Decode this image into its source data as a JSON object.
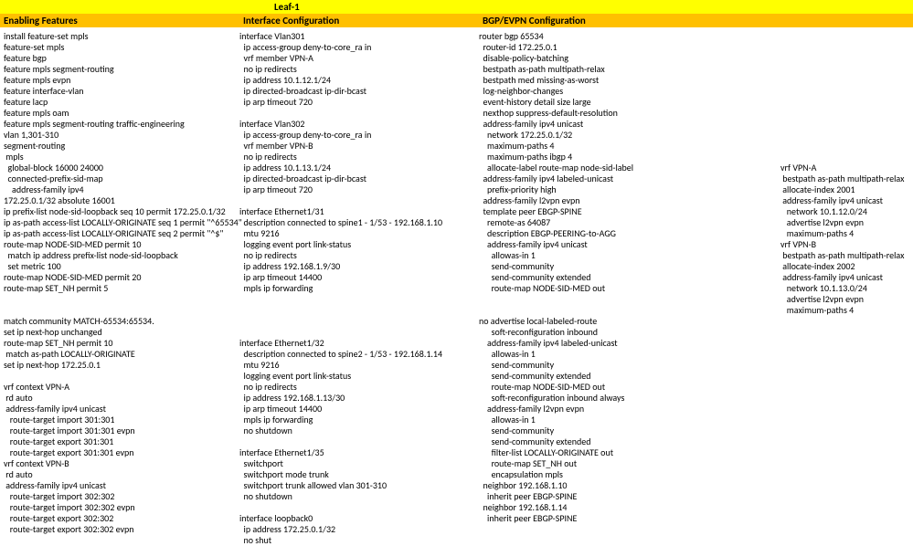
{
  "title": "Leaf-1",
  "headers": {
    "h1": "Enabling Features",
    "h2": "Interface Configuration",
    "h3": "BGP/EVPN Configuration"
  },
  "col1": "install feature-set mpls\nfeature-set mpls\nfeature bgp\nfeature mpls segment-routing\nfeature mpls evpn\nfeature interface-vlan\nfeature lacp\nfeature mpls oam\nfeature mpls segment-routing traffic-engineering\nvlan 1,301-310\nsegment-routing\n mpls\n  global-block 16000 24000\n  connected-prefix-sid-map\n    address-family ipv4\n172.25.0.1/32 absolute 16001\nip prefix-list node-sid-loopback seq 10 permit 172.25.0.1/32\nip as-path access-list LOCALLY-ORIGINATE seq 1 permit \"^65534\"\nip as-path access-list LOCALLY-ORIGINATE seq 2 permit \"^$\"\nroute-map NODE-SID-MED permit 10\n  match ip address prefix-list node-sid-loopback\n  set metric 100\nroute-map NODE-SID-MED permit 20\nroute-map SET_NH permit 5\n\n\nmatch community MATCH-65534:65534.\nset ip next-hop unchanged\nroute-map SET_NH permit 10\n match as-path LOCALLY-ORIGINATE\nset ip next-hop 172.25.0.1\n\nvrf context VPN-A\n rd auto\n address-family ipv4 unicast\n   route-target import 301:301\n   route-target import 301:301 evpn\n   route-target export 301:301\n   route-target export 301:301 evpn\nvrf context VPN-B\n rd auto\n address-family ipv4 unicast\n   route-target import 302:302\n   route-target import 302:302 evpn\n   route-target export 302:302\n   route-target export 302:302 evpn",
  "col2": "interface Vlan301\n  ip access-group deny-to-core_ra in\n  vrf member VPN-A\n  no ip redirects\n  ip address 10.1.12.1/24\n  ip directed-broadcast ip-dir-bcast\n  ip arp timeout 720\n\ninterface Vlan302\n  ip access-group deny-to-core_ra in\n  vrf member VPN-B\n  no ip redirects\n  ip address 10.1.13.1/24\n  ip directed-broadcast ip-dir-bcast\n  ip arp timeout 720\n\ninterface Ethernet1/31\n  description connected to spine1 - 1/53 - 192.168.1.10\n  mtu 9216\n  logging event port link-status\n  no ip redirects\n  ip address 192.168.1.9/30\n  ip arp timeout 14400\n  mpls ip forwarding\n\n\n\n\ninterface Ethernet1/32\n  description connected to spine2 - 1/53 - 192.168.1.14\n  mtu 9216\n  logging event port link-status\n  no ip redirects\n  ip address 192.168.1.13/30\n  ip arp timeout 14400\n  mpls ip forwarding\n  no shutdown\n\ninterface Ethernet1/35\n  switchport\n  switchport mode trunk\n  switchport trunk allowed vlan 301-310\n  no shutdown\n\ninterface loopback0\n  ip address 172.25.0.1/32\n  no shut",
  "col3": "router bgp 65534\n  router-id 172.25.0.1\n  disable-policy-batching\n  bestpath as-path multipath-relax\n  bestpath med missing-as-worst\n  log-neighbor-changes\n  event-history detail size large\n  nexthop suppress-default-resolution\n  address-family ipv4 unicast\n    network 172.25.0.1/32\n    maximum-paths 4\n    maximum-paths ibgp 4\n    allocate-label route-map node-sid-label\n  address-family ipv4 labeled-unicast\n    prefix-priority high\n  address-family l2vpn evpn\n  template peer EBGP-SPINE\n    remote-as 64087\n    description EBGP-PEERING-to-AGG\n    address-family ipv4 unicast\n      allowas-in 1\n      send-community\n      send-community extended\n      route-map NODE-SID-MED out\n\n\nno advertise local-labeled-route\n      soft-reconfiguration inbound\n    address-family ipv4 labeled-unicast\n      allowas-in 1\n      send-community\n      send-community extended\n      route-map NODE-SID-MED out\n      soft-reconfiguration inbound always\n    address-family l2vpn evpn\n      allowas-in 1\n      send-community\n      send-community extended\n      filter-list LOCALLY-ORIGINATE out\n      route-map SET_NH out\n      encapsulation mpls\n  neighbor 192.168.1.10\n    inherit peer EBGP-SPINE\n  neighbor 192.168.1.14\n    inherit peer EBGP-SPINE",
  "col4": "\n\n\n\n\n\n\n\n\n\n\n\nvrf VPN-A\n bestpath as-path multipath-relax\n allocate-index 2001\n address-family ipv4 unicast\n   network 10.1.12.0/24\n   advertise l2vpn evpn\n   maximum-paths 4\nvrf VPN-B\n bestpath as-path multipath-relax\n allocate-index 2002\n address-family ipv4 unicast\n   network 10.1.13.0/24\n   advertise l2vpn evpn\n   maximum-paths 4"
}
